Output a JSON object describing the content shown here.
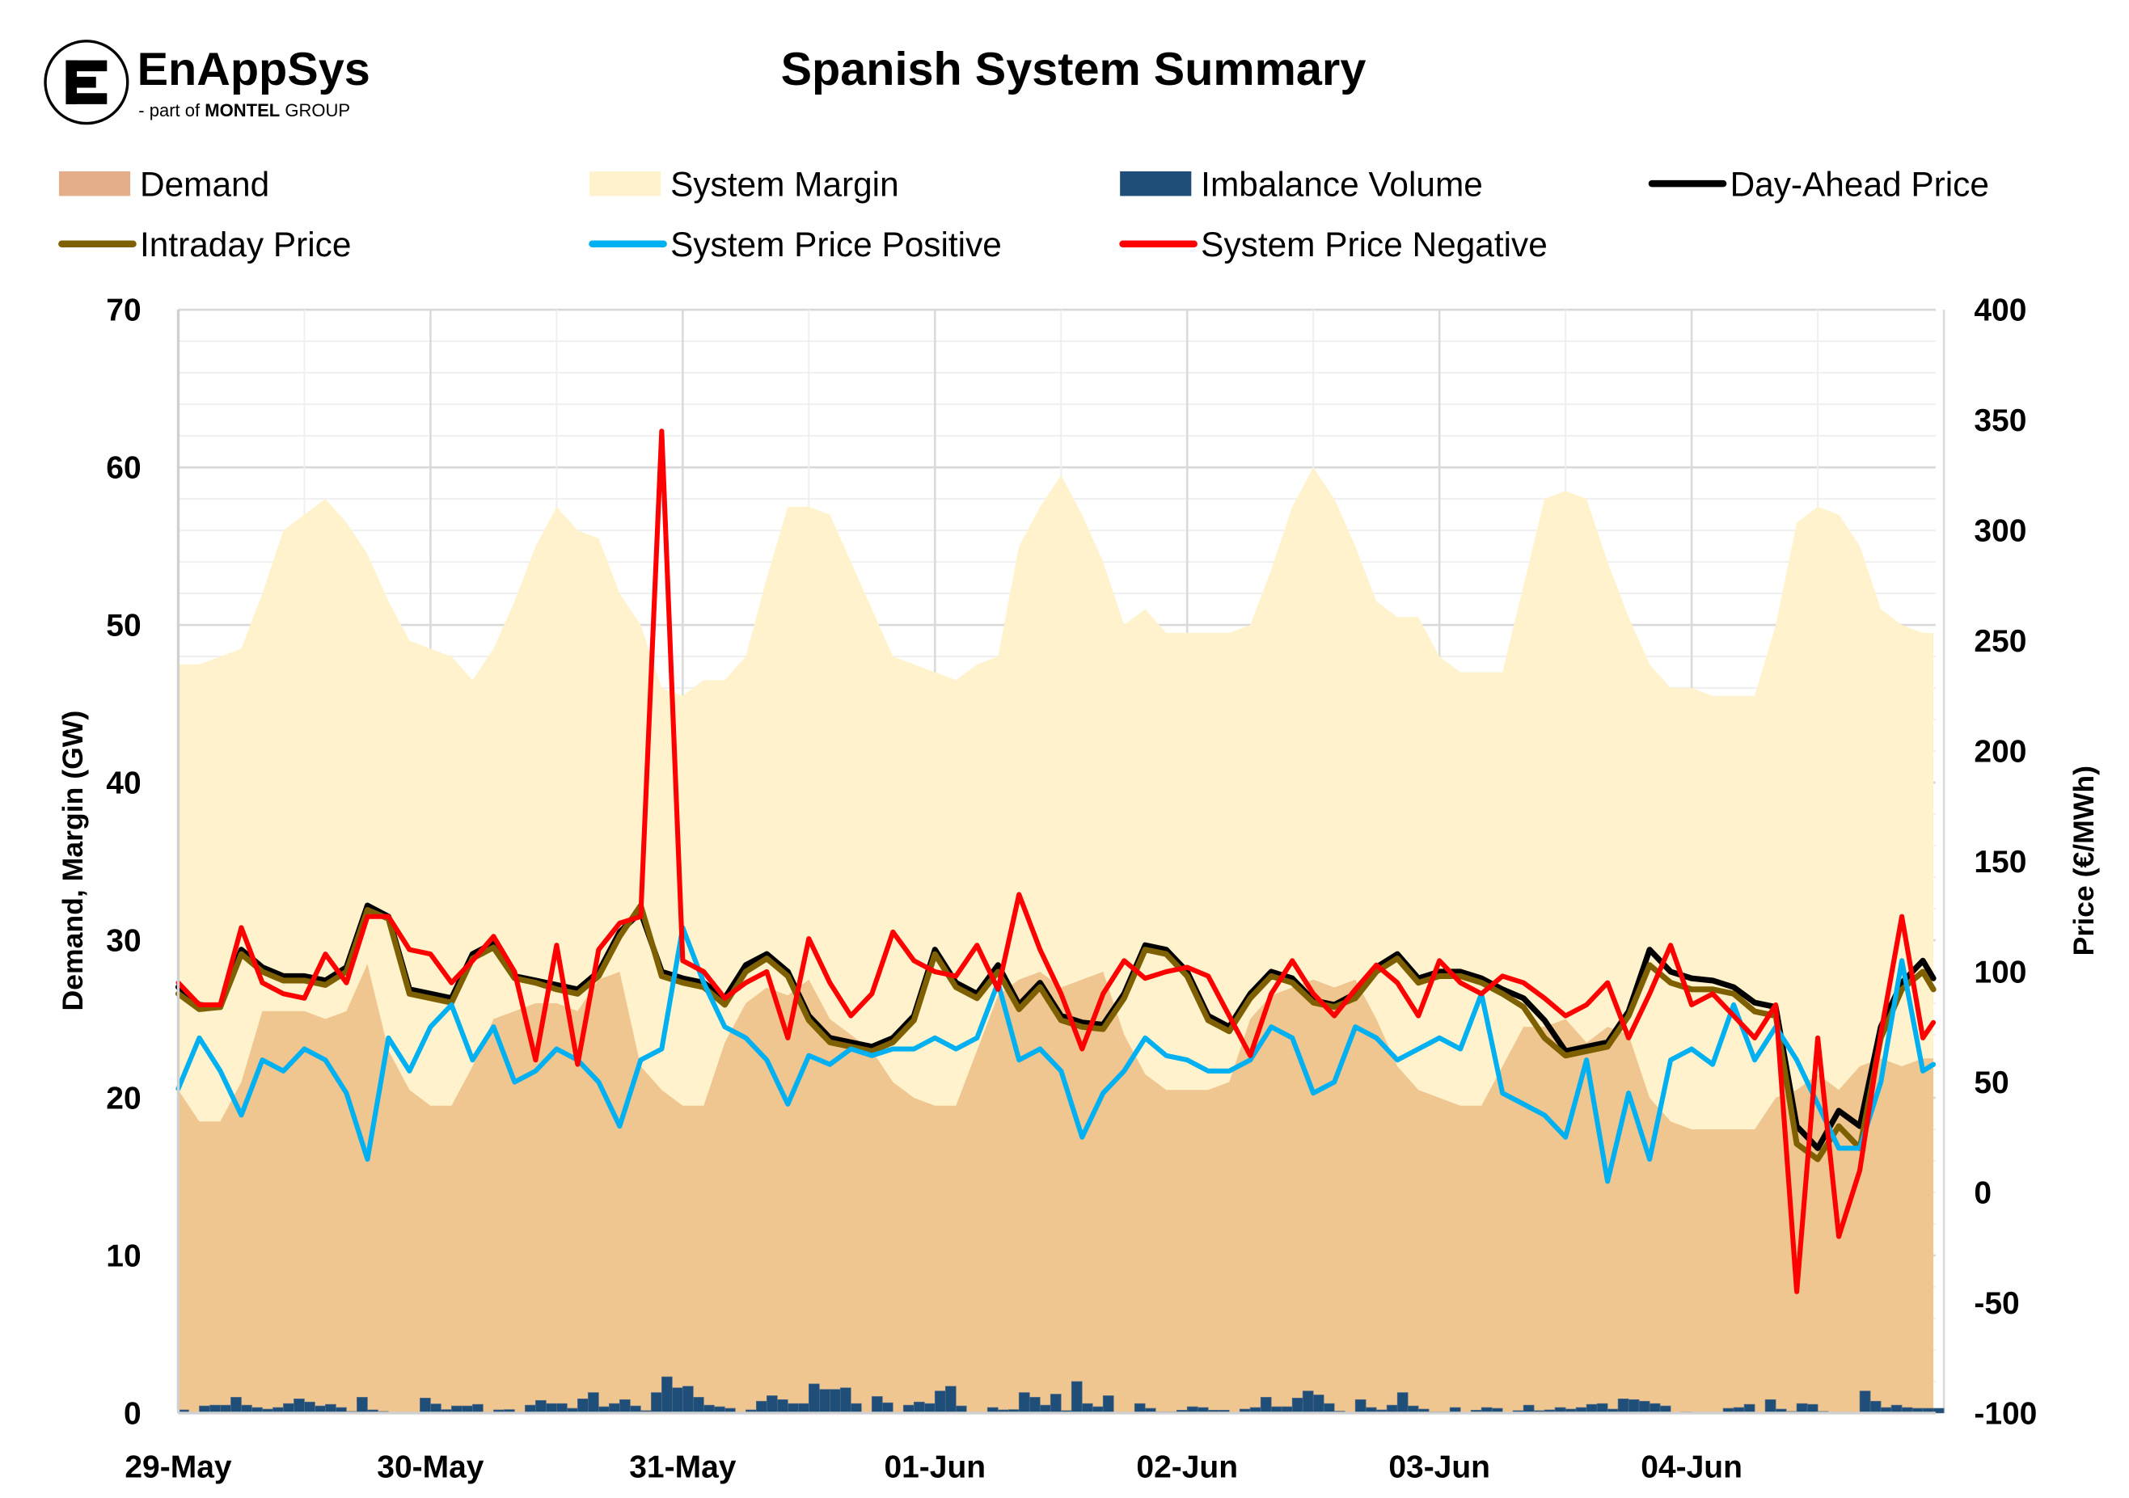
{
  "logo": {
    "brand": "EnAppSys",
    "tagline_prefix": "- part of",
    "tagline_brand": "MONTEL",
    "tagline_suffix": "GROUP"
  },
  "colors": {
    "demand": "#efc590",
    "demand_swatch": "#e3ae89",
    "margin": "#fff2cc",
    "imbalance": "#1f4e79",
    "day_ahead": "#000000",
    "intraday": "#7f6000",
    "sys_pos": "#00b0f0",
    "sys_neg": "#ff0000"
  },
  "chart_data": {
    "type": "area+bar+line",
    "title": "Spanish System Summary",
    "ylabel": "Demand, Margin (GW)",
    "y2label": "Price (€/MWh)",
    "ylim": [
      0,
      70
    ],
    "y2lim": [
      -100,
      400
    ],
    "yticks": [
      "0",
      "10",
      "20",
      "30",
      "40",
      "50",
      "60",
      "70"
    ],
    "y2ticks": [
      "-100",
      "-50",
      "0",
      "50",
      "100",
      "150",
      "200",
      "250",
      "300",
      "350",
      "400"
    ],
    "xticks": [
      "29-May",
      "30-May",
      "31-May",
      "01-Jun",
      "02-Jun",
      "03-Jun",
      "04-Jun"
    ],
    "grid": true,
    "legend_position": "top",
    "legend": [
      {
        "key": "demand",
        "label": "Demand",
        "kind": "box"
      },
      {
        "key": "margin",
        "label": "System Margin",
        "kind": "box"
      },
      {
        "key": "imbalance",
        "label": "Imbalance Volume",
        "kind": "box"
      },
      {
        "key": "day_ahead",
        "label": "Day-Ahead Price",
        "kind": "line"
      },
      {
        "key": "intraday",
        "label": "Intraday Price",
        "kind": "line"
      },
      {
        "key": "sys_pos",
        "label": "System Price Positive",
        "kind": "line"
      },
      {
        "key": "sys_neg",
        "label": "System Price Negative",
        "kind": "line"
      }
    ],
    "time_step_hours": 2,
    "imbalance_step_hours": 1,
    "series": {
      "margin": [
        47.5,
        47.5,
        48,
        48.5,
        52,
        56,
        57,
        58,
        56.5,
        54.5,
        51.5,
        49,
        48.5,
        48,
        46.5,
        48.5,
        51.5,
        55,
        57.5,
        56,
        55.5,
        52,
        50,
        46,
        45.5,
        46.5,
        46.5,
        48,
        53,
        57.5,
        57.5,
        57,
        54,
        51,
        48,
        47.5,
        47,
        46.5,
        47.5,
        48,
        55,
        57.5,
        59.5,
        57,
        54,
        50,
        51,
        49.5,
        49.5,
        49.5,
        49.5,
        50,
        53.5,
        57.5,
        60,
        58,
        55,
        51.5,
        50.5,
        50.5,
        48,
        47,
        47,
        47,
        52.5,
        58,
        58.5,
        58,
        54,
        50.5,
        47.5,
        46,
        46,
        45.5,
        45.5,
        45.5,
        50,
        56.5,
        57.5,
        57,
        55,
        51,
        50,
        49.5
      ],
      "demand": [
        20.5,
        18.5,
        18.5,
        21,
        25.5,
        25.5,
        25.5,
        25,
        25.5,
        28.5,
        23,
        20.5,
        19.5,
        19.5,
        22,
        25,
        25.5,
        26,
        26,
        25.5,
        27.5,
        28,
        22,
        20.5,
        19.5,
        19.5,
        23.5,
        26,
        27,
        26.5,
        27.5,
        25,
        24,
        23,
        21,
        20,
        19.5,
        19.5,
        23,
        26.5,
        27.5,
        28,
        27,
        27.5,
        28,
        24,
        21.5,
        20.5,
        20.5,
        20.5,
        21,
        25,
        26.5,
        27,
        27.5,
        27,
        27.5,
        25,
        22,
        20.5,
        20,
        19.5,
        19.5,
        22,
        24.5,
        24.5,
        25,
        23.5,
        24.5,
        24,
        20,
        18.5,
        18,
        18,
        18,
        18,
        20,
        20.5,
        21.5,
        20.5,
        22,
        22.5,
        22,
        22.5
      ],
      "imbalance": [
        0.2,
        0,
        0.45,
        0.5,
        0.5,
        1.0,
        0.5,
        0.35,
        0.25,
        0.35,
        0.6,
        0.9,
        0.7,
        0.45,
        0.55,
        0.35,
        0.1,
        1.0,
        0.2,
        0.1,
        0,
        0,
        0,
        0.95,
        0.58,
        0.22,
        0.45,
        0.45,
        0.55,
        0,
        0.2,
        0.22,
        0.05,
        0.5,
        0.8,
        0.6,
        0.6,
        0.3,
        0.9,
        1.3,
        0.4,
        0.6,
        0.85,
        0.45,
        0.15,
        1.3,
        2.3,
        1.6,
        1.7,
        1.0,
        0.5,
        0.4,
        0.3,
        0,
        0.2,
        0.75,
        1.1,
        0.85,
        0.6,
        0.6,
        1.85,
        1.5,
        1.5,
        1.6,
        0.6,
        0.05,
        1.05,
        0.65,
        0.05,
        0.5,
        0.7,
        0.6,
        1.4,
        1.7,
        0.45,
        0.05,
        0.05,
        0.35,
        0.2,
        0.22,
        1.3,
        1.0,
        0.5,
        1.2,
        0.15,
        2.0,
        0.6,
        0.4,
        1.1,
        0.02,
        0,
        0.6,
        0.3,
        0.08,
        0.08,
        0.18,
        0.4,
        0.35,
        0.18,
        0.18,
        0,
        0.25,
        0.35,
        1.0,
        0.4,
        0.4,
        0.95,
        1.4,
        1.15,
        0.6,
        0.12,
        0,
        0.85,
        0.35,
        0.2,
        0.5,
        1.3,
        0.45,
        0.25,
        0.08,
        0.08,
        0.35,
        0.05,
        0.18,
        0.35,
        0.3,
        0,
        0.15,
        0.5,
        0.15,
        0.2,
        0.35,
        0.25,
        0.35,
        0.55,
        0.6,
        0.25,
        0.9,
        0.85,
        0.75,
        0.6,
        0.45,
        0.03,
        0.08,
        0.03,
        0,
        0.03,
        0.3,
        0.35,
        0.55,
        0,
        0.85,
        0.25,
        0.1,
        0.6,
        0.55,
        0.1,
        0.03,
        0,
        0.03,
        1.4,
        0.75,
        0.35,
        0.5,
        0.35,
        0.3,
        0.3,
        0.3
      ],
      "day_ahead": [
        93,
        85,
        84,
        110,
        102,
        98,
        98,
        96,
        102,
        130,
        125,
        92,
        90,
        88,
        108,
        113,
        98,
        96,
        94,
        92,
        100,
        118,
        127,
        100,
        97,
        95,
        88,
        103,
        108,
        100,
        80,
        70,
        68,
        66,
        70,
        80,
        110,
        95,
        90,
        103,
        85,
        95,
        80,
        77,
        76,
        90,
        112,
        110,
        100,
        80,
        75,
        90,
        100,
        97,
        87,
        85,
        90,
        102,
        108,
        97,
        100,
        100,
        97,
        92,
        88,
        78,
        64,
        66,
        68,
        82,
        110,
        100,
        97,
        96,
        93,
        86,
        84,
        30,
        20,
        37,
        30,
        75,
        95,
        105,
        97
      ],
      "intraday": [
        90,
        83,
        84,
        108,
        100,
        96,
        96,
        94,
        100,
        128,
        124,
        90,
        88,
        86,
        106,
        111,
        97,
        95,
        92,
        90,
        98,
        116,
        130,
        98,
        95,
        93,
        85,
        100,
        106,
        98,
        78,
        68,
        66,
        64,
        68,
        78,
        108,
        93,
        88,
        100,
        83,
        93,
        78,
        75,
        74,
        88,
        110,
        108,
        98,
        78,
        73,
        88,
        98,
        95,
        86,
        84,
        88,
        100,
        106,
        95,
        98,
        98,
        95,
        90,
        84,
        70,
        62,
        64,
        66,
        80,
        103,
        95,
        92,
        92,
        90,
        82,
        80,
        22,
        15,
        30,
        20,
        70,
        92,
        100,
        92
      ],
      "sys_pos": [
        47,
        70,
        55,
        35,
        60,
        55,
        65,
        60,
        45,
        15,
        70,
        55,
        75,
        85,
        60,
        75,
        50,
        55,
        65,
        60,
        50,
        30,
        60,
        65,
        120,
        95,
        75,
        70,
        60,
        40,
        62,
        58,
        65,
        62,
        65,
        65,
        70,
        65,
        70,
        95,
        60,
        65,
        55,
        25,
        45,
        55,
        70,
        62,
        60,
        55,
        55,
        60,
        75,
        70,
        45,
        50,
        75,
        70,
        60,
        65,
        70,
        65,
        90,
        45,
        40,
        35,
        25,
        60,
        5,
        45,
        15,
        60,
        65,
        58,
        85,
        60,
        75,
        60,
        40,
        20,
        20,
        50,
        105,
        55,
        58
      ],
      "sys_neg": [
        95,
        85,
        85,
        120,
        95,
        90,
        88,
        108,
        95,
        125,
        125,
        110,
        108,
        95,
        105,
        116,
        100,
        60,
        112,
        58,
        110,
        122,
        125,
        345,
        105,
        100,
        88,
        95,
        100,
        70,
        115,
        95,
        80,
        90,
        118,
        105,
        100,
        98,
        112,
        92,
        135,
        110,
        90,
        65,
        90,
        105,
        97,
        100,
        102,
        98,
        80,
        62,
        90,
        105,
        90,
        80,
        92,
        103,
        95,
        80,
        105,
        95,
        90,
        98,
        95,
        88,
        80,
        85,
        95,
        70,
        90,
        112,
        85,
        90,
        80,
        70,
        85,
        -45,
        70,
        -20,
        10,
        72,
        125,
        70,
        77
      ]
    }
  }
}
